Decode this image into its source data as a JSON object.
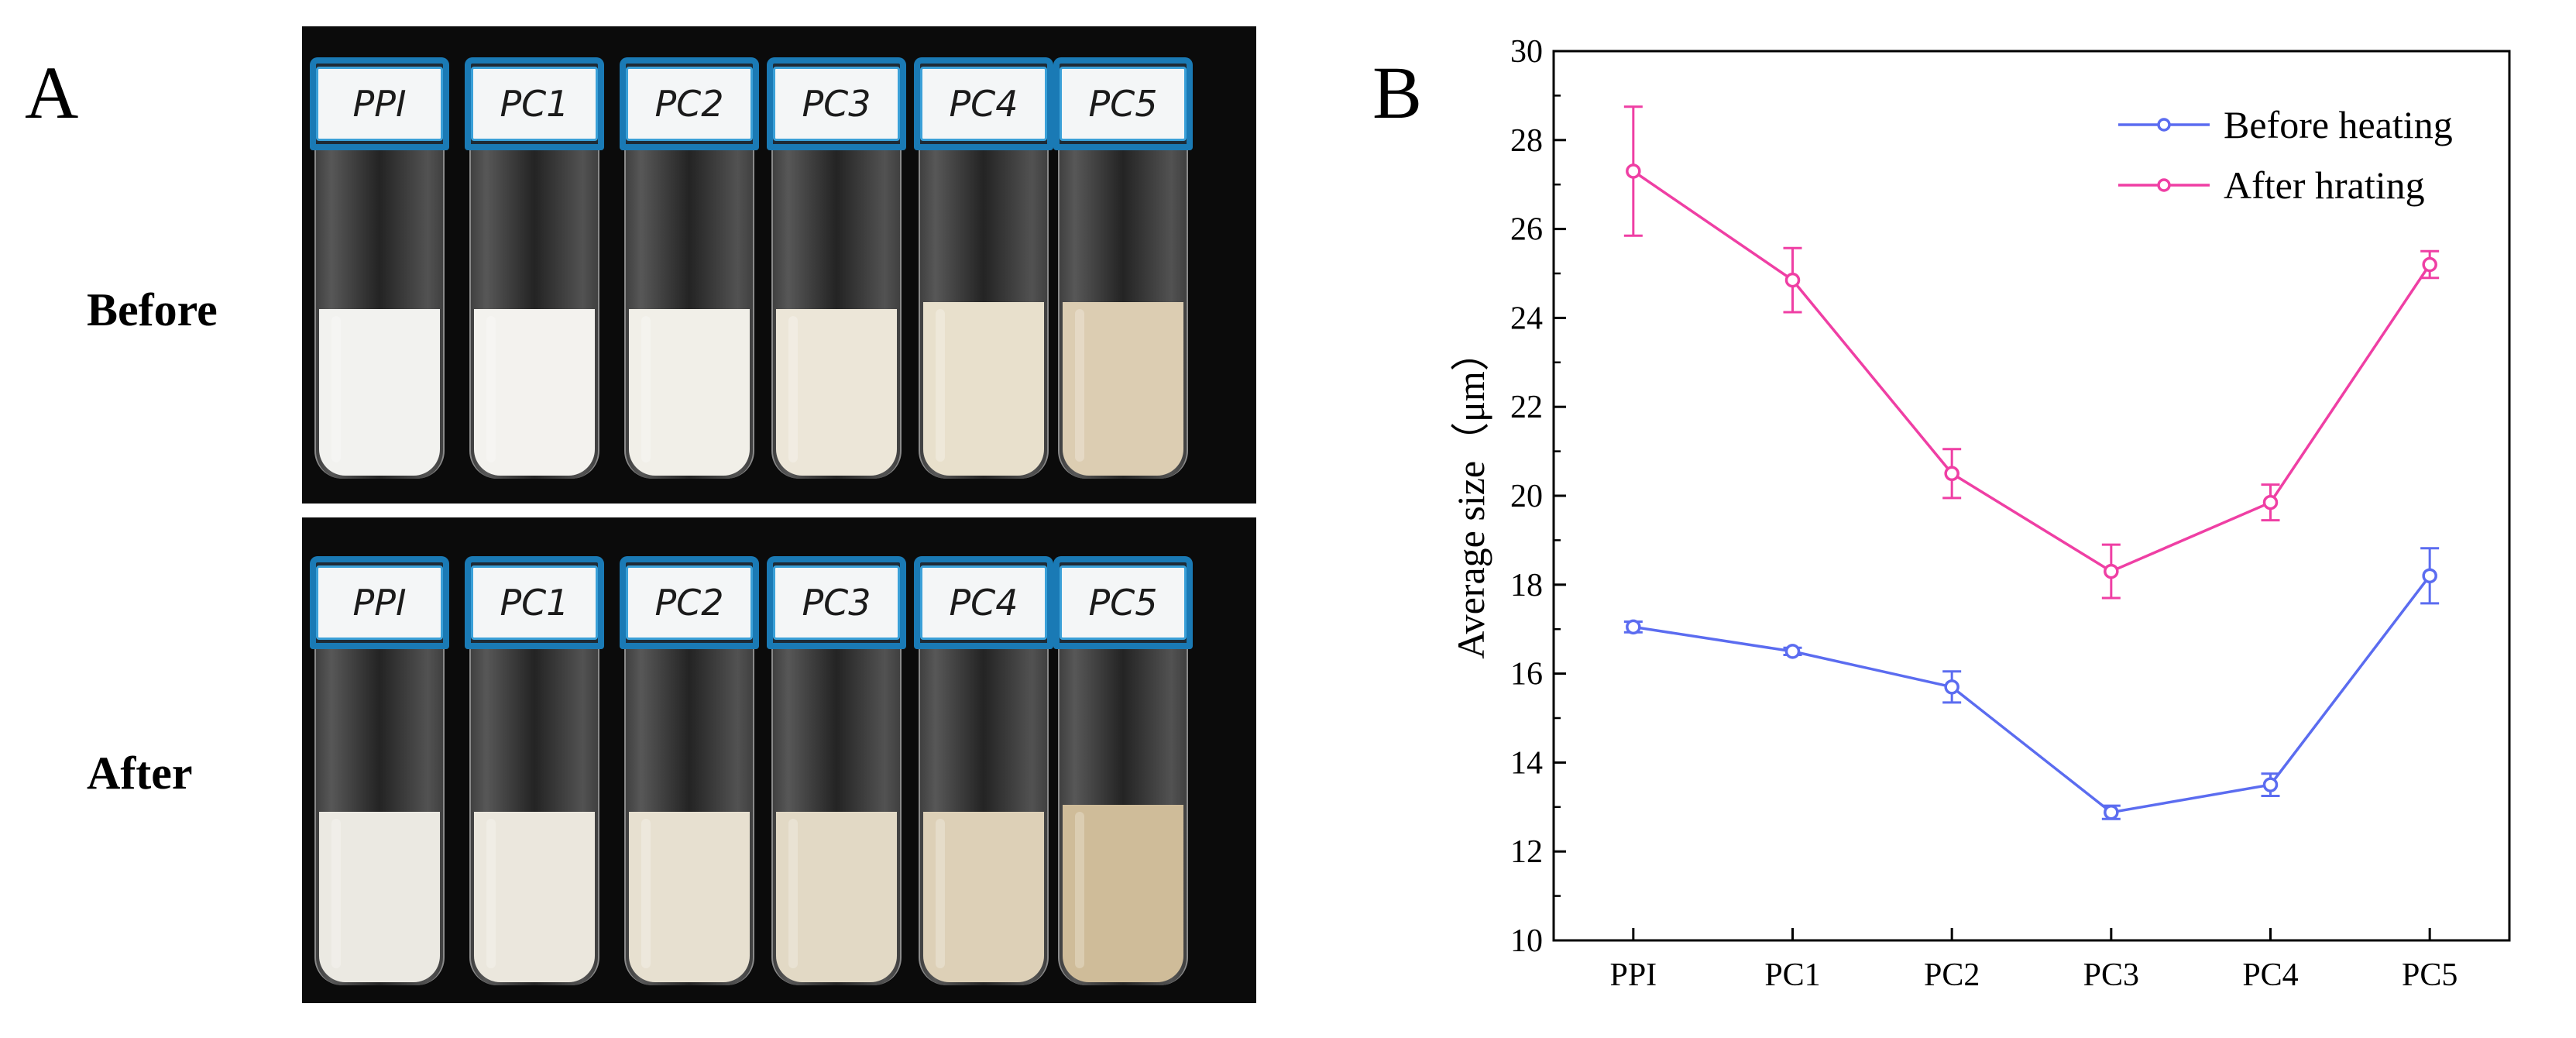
{
  "panel_a": {
    "letter": "A",
    "row_before_label": "Before",
    "row_after_label": "After",
    "vials_before": [
      {
        "label": "PPI",
        "fill_color": "#f2f2ef",
        "fill_level": 0.5
      },
      {
        "label": "PC1",
        "fill_color": "#f3f2ee",
        "fill_level": 0.5
      },
      {
        "label": "PC2",
        "fill_color": "#f1efe8",
        "fill_level": 0.5
      },
      {
        "label": "PC3",
        "fill_color": "#ece6d8",
        "fill_level": 0.5
      },
      {
        "label": "PC4",
        "fill_color": "#e8e0cc",
        "fill_level": 0.52
      },
      {
        "label": "PC5",
        "fill_color": "#dccdb2",
        "fill_level": 0.52
      }
    ],
    "vials_after": [
      {
        "label": "PPI",
        "fill_color": "#ebe9e2",
        "fill_level": 0.5
      },
      {
        "label": "PC1",
        "fill_color": "#ebe7dd",
        "fill_level": 0.5
      },
      {
        "label": "PC2",
        "fill_color": "#e7e0d0",
        "fill_level": 0.5
      },
      {
        "label": "PC3",
        "fill_color": "#e2d9c5",
        "fill_level": 0.5
      },
      {
        "label": "PC4",
        "fill_color": "#ddd0b7",
        "fill_level": 0.5
      },
      {
        "label": "PC5",
        "fill_color": "#cfbc99",
        "fill_level": 0.52
      }
    ]
  },
  "panel_b": {
    "letter": "B"
  },
  "chart_data": {
    "type": "line",
    "title": "",
    "xlabel": "",
    "ylabel": "Average size（μm）",
    "categories": [
      "PPI",
      "PC1",
      "PC2",
      "PC3",
      "PC4",
      "PC5"
    ],
    "ylim": [
      10,
      30
    ],
    "yticks": [
      10,
      12,
      14,
      16,
      18,
      20,
      22,
      24,
      26,
      28,
      30
    ],
    "grid": false,
    "legend_position": "top-right",
    "series": [
      {
        "name": "Before heating",
        "color": "#5b6cf0",
        "values": [
          17.05,
          16.5,
          15.7,
          12.88,
          13.5,
          18.2
        ],
        "errors": [
          0.12,
          0.08,
          0.35,
          0.15,
          0.25,
          0.62
        ]
      },
      {
        "name": "After hrating",
        "color": "#ef3fa4",
        "values": [
          27.3,
          24.85,
          20.5,
          18.3,
          19.85,
          25.2
        ],
        "errors": [
          1.45,
          0.72,
          0.55,
          0.6,
          0.4,
          0.3
        ]
      }
    ]
  }
}
